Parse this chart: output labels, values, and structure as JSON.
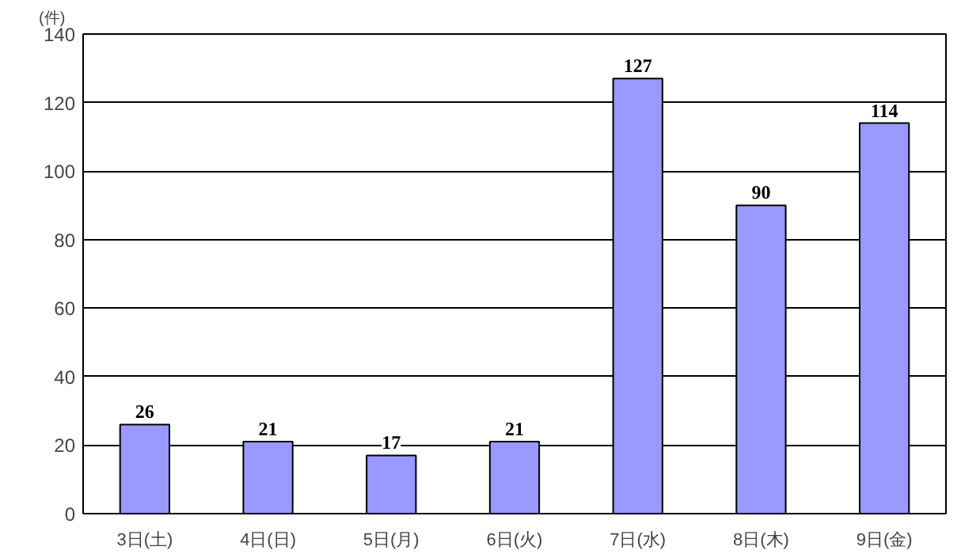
{
  "chart_data": {
    "type": "bar",
    "ylabel": "(件)",
    "categories": [
      "3日(土)",
      "4日(日)",
      "5日(月)",
      "6日(火)",
      "7日(水)",
      "8日(木)",
      "9日(金)"
    ],
    "values": [
      26,
      21,
      17,
      21,
      127,
      90,
      114
    ],
    "color": "#9999ff",
    "data_labels": true,
    "ylim": [
      0,
      140
    ],
    "yticks": [
      0,
      20,
      40,
      60,
      80,
      100,
      120,
      140
    ],
    "grid": "y"
  }
}
